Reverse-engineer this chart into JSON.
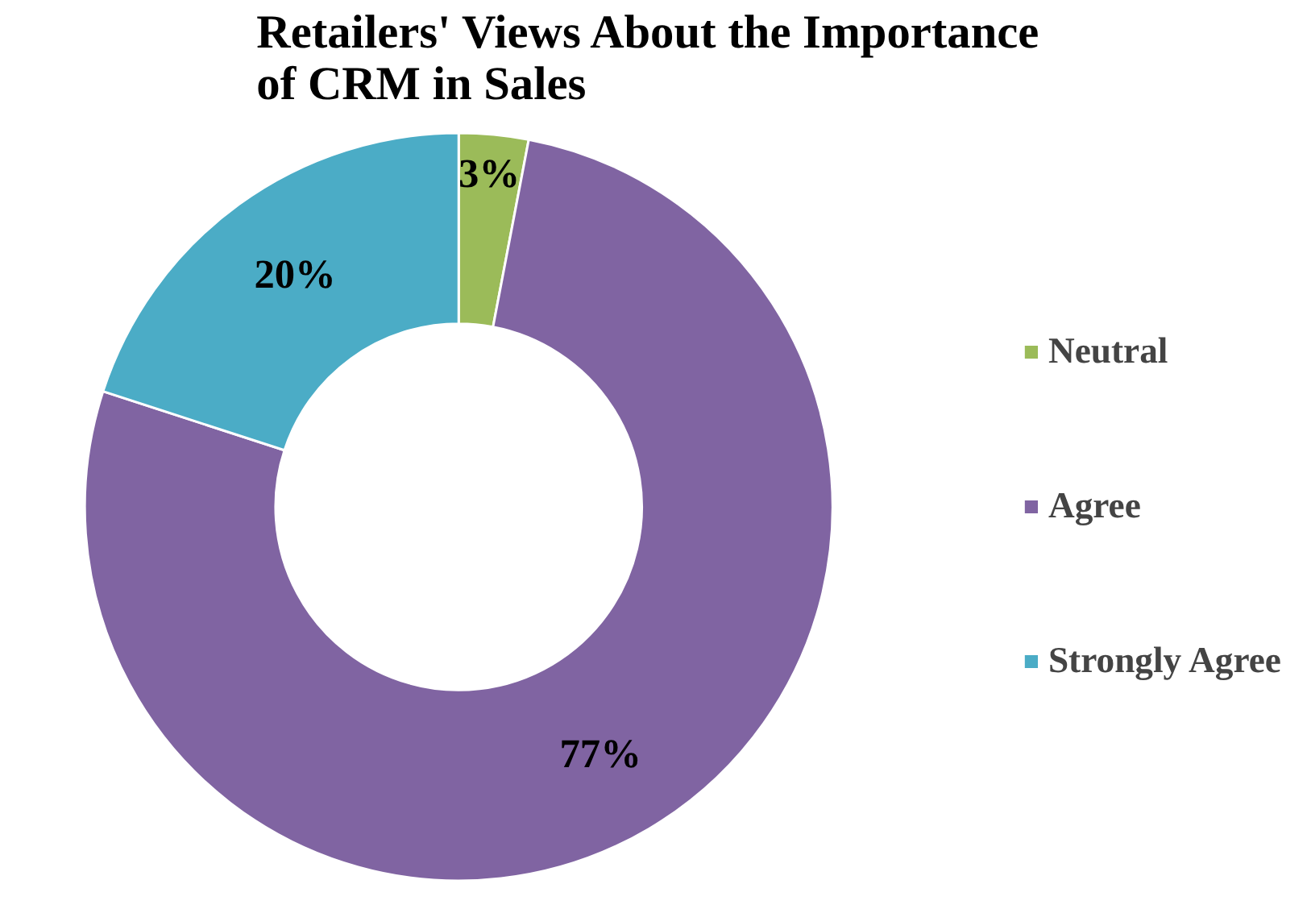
{
  "chart_data": {
    "type": "donut",
    "title": "Retailers' Views About the Importance\nof CRM in Sales",
    "categories": [
      "Neutral",
      "Agree",
      "Strongly Agree"
    ],
    "values": [
      3,
      77,
      20
    ],
    "colors": [
      "#9bbb59",
      "#8064a2",
      "#4bacc6"
    ],
    "value_labels": [
      "3%",
      "77%",
      "20%"
    ],
    "legend": "right"
  }
}
